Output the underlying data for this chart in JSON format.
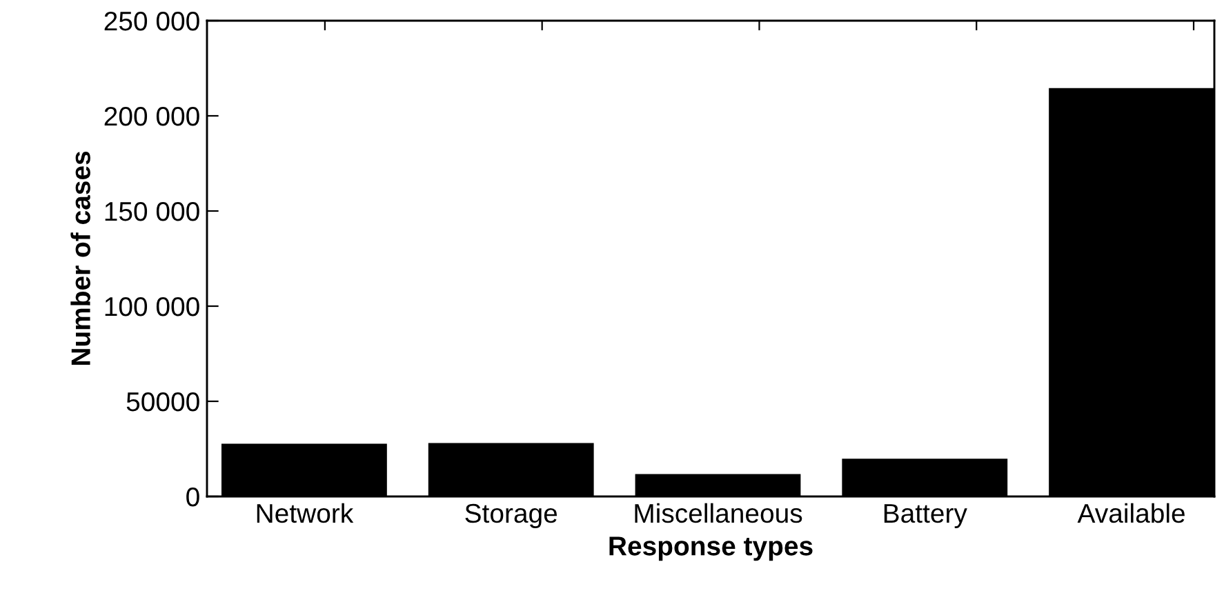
{
  "chart_data": {
    "type": "bar",
    "xlabel": "Response types",
    "ylabel": "Number of cases",
    "categories": [
      "Network",
      "Storage",
      "Miscellaneous",
      "Battery",
      "Available"
    ],
    "values": [
      27700,
      28100,
      11800,
      19800,
      214600
    ],
    "color": "#000000",
    "ylim": [
      0,
      250000
    ],
    "yticks": [
      0,
      {
        "value": 50000,
        "label": "50000"
      },
      {
        "value": 100000,
        "label": "100 000"
      },
      {
        "value": 150000,
        "label": "150 000"
      },
      {
        "value": 200000,
        "label": "200 000"
      },
      {
        "value": 250000,
        "label": "250 000"
      }
    ],
    "grid": false
  }
}
